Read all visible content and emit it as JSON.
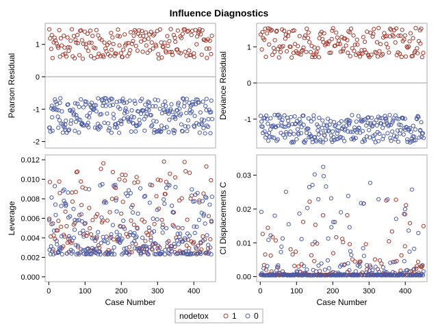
{
  "title": "Influence Diagnostics",
  "colors": {
    "group1": "#a23a2e",
    "group0": "#4a5aa6",
    "frame": "#ababab",
    "reference": "#9a9a9a",
    "background": "#ffffff"
  },
  "legend": {
    "title": "nodetox",
    "entries": [
      "1",
      "0"
    ]
  },
  "chart_data": [
    {
      "type": "scatter",
      "id": "pearson",
      "title": "",
      "xlabel": "",
      "ylabel": "Pearson Residual",
      "xlim": [
        -10,
        460
      ],
      "ylim": [
        -2.2,
        1.65
      ],
      "yticks": [
        -2,
        -1,
        0,
        1
      ],
      "xticks": [],
      "refline": 0,
      "series": [
        {
          "name": "1",
          "n": 180,
          "pattern": "band",
          "low": 0.55,
          "high": 1.48
        },
        {
          "name": "0",
          "n": 270,
          "pattern": "band",
          "low": -1.75,
          "high": -0.65
        }
      ]
    },
    {
      "type": "scatter",
      "id": "deviance",
      "title": "",
      "xlabel": "",
      "ylabel": "Deviance Residual",
      "xlim": [
        -10,
        460
      ],
      "ylim": [
        -1.8,
        1.65
      ],
      "yticks": [
        -1,
        0,
        1
      ],
      "xticks": [],
      "refline": 0,
      "series": [
        {
          "name": "1",
          "n": 180,
          "pattern": "band",
          "low": 0.7,
          "high": 1.52
        },
        {
          "name": "0",
          "n": 270,
          "pattern": "band",
          "low": -1.65,
          "high": -0.88
        }
      ]
    },
    {
      "type": "scatter",
      "id": "leverage",
      "title": "",
      "xlabel": "Case Number",
      "ylabel": "Leverage",
      "xlim": [
        -10,
        460
      ],
      "ylim": [
        -0.0005,
        0.0125
      ],
      "yticks": [
        0.0,
        0.002,
        0.004,
        0.006,
        0.008,
        0.01,
        0.012
      ],
      "ytickDecimals": 3,
      "xticks": [
        0,
        100,
        200,
        300,
        400
      ],
      "series": [
        {
          "name": "1",
          "n": 180,
          "pattern": "skew",
          "low": 0.0024,
          "high": 0.0119,
          "power": 1.8
        },
        {
          "name": "0",
          "n": 270,
          "pattern": "skew",
          "low": 0.0023,
          "high": 0.0095,
          "power": 2.6
        }
      ]
    },
    {
      "type": "scatter",
      "id": "cooks",
      "title": "",
      "xlabel": "Case Number",
      "ylabel": "CI Displacements C",
      "xlim": [
        -10,
        460
      ],
      "ylim": [
        -0.0015,
        0.036
      ],
      "yticks": [
        0.0,
        0.01,
        0.02,
        0.03
      ],
      "ytickDecimals": 2,
      "xticks": [
        0,
        100,
        200,
        300,
        400
      ],
      "series": [
        {
          "name": "1",
          "n": 180,
          "pattern": "skew",
          "low": 0.0005,
          "high": 0.0228,
          "power": 7
        },
        {
          "name": "0",
          "n": 270,
          "pattern": "skew",
          "low": 0.0004,
          "high": 0.034,
          "power": 9
        }
      ]
    }
  ]
}
